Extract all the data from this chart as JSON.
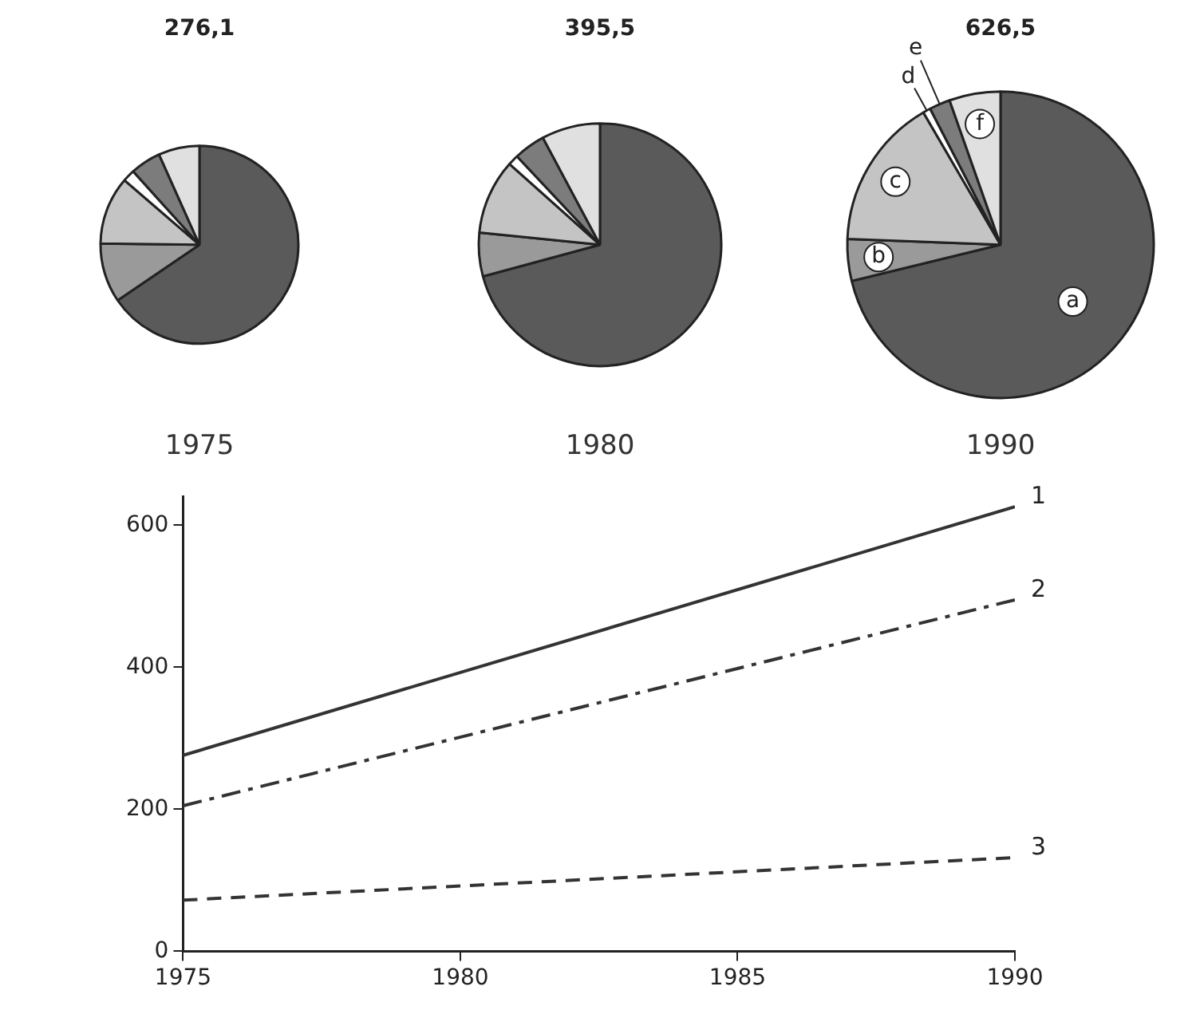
{
  "chart_data": [
    {
      "type": "pie",
      "title": "276,1",
      "annotations": [
        "1975"
      ],
      "categories": [
        null,
        null,
        null,
        null,
        null,
        null
      ],
      "values": [
        65.5,
        9.7,
        11.1,
        2,
        5,
        6.7
      ],
      "colors": [
        "#5a5a5a",
        "#9a9a9a",
        "#c4c4c4",
        "#ffffff",
        "#7c7c7c",
        "#e0e0e0"
      ],
      "legend": false
    },
    {
      "type": "pie",
      "title": "395,5",
      "annotations": [
        "1980"
      ],
      "categories": [
        null,
        null,
        null,
        null,
        null,
        null
      ],
      "values": [
        70.8,
        5.8,
        10,
        1.4,
        4.2,
        7.8
      ],
      "colors": [
        "#5a5a5a",
        "#9a9a9a",
        "#c4c4c4",
        "#ffffff",
        "#7c7c7c",
        "#e0e0e0"
      ],
      "legend": false
    },
    {
      "type": "pie",
      "title": "626,5",
      "annotations": [
        "1990"
      ],
      "categories": [
        "a",
        "b",
        "c",
        "d",
        "e",
        "f"
      ],
      "values": [
        71.2,
        4.4,
        16,
        0.8,
        2.2,
        5.4
      ],
      "colors": [
        "#5a5a5a",
        "#9a9a9a",
        "#c4c4c4",
        "#ffffff",
        "#7c7c7c",
        "#e0e0e0"
      ],
      "legend": false
    },
    {
      "type": "line",
      "x": [
        1975,
        1990
      ],
      "xlim": [
        1975,
        1990
      ],
      "xticks": [
        1975,
        1980,
        1985,
        1990
      ],
      "ylim": [
        0,
        640
      ],
      "yticks": [
        0,
        200,
        400,
        600
      ],
      "grid": false,
      "legend": false,
      "marker": "none",
      "series": [
        {
          "name": "1",
          "color": "#333333",
          "values": [
            276,
            626
          ],
          "line_style": "solid"
        },
        {
          "name": "2",
          "color": "#333333",
          "values": [
            205,
            495
          ],
          "line_style": "dash-dot"
        },
        {
          "name": "3",
          "color": "#333333",
          "values": [
            72,
            132
          ],
          "line_style": "dashed"
        }
      ]
    }
  ]
}
